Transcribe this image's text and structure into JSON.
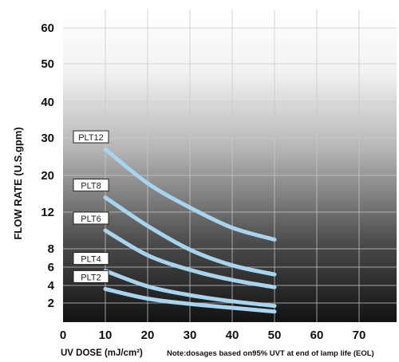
{
  "chart_data": {
    "type": "line",
    "xlabel": "UV DOSE (mJ/cm²)",
    "ylabel": "FLOW RATE (U.S.gpm)",
    "note": "Note:dosages based on95% UVT at end of lamp life (EOL)",
    "xlim": [
      0,
      80
    ],
    "x_ticks": [
      0,
      10,
      20,
      30,
      40,
      50,
      60,
      70
    ],
    "y_ticks": [
      2,
      4,
      6,
      8,
      12,
      20,
      30,
      40,
      50,
      60
    ],
    "grid": true,
    "series": [
      {
        "name": "PLT12",
        "x": [
          10,
          20,
          30,
          40,
          50
        ],
        "y": [
          27,
          18.3,
          13,
          10.3,
          9
        ]
      },
      {
        "name": "PLT8",
        "x": [
          10,
          20,
          30,
          40,
          50
        ],
        "y": [
          15.2,
          10.5,
          7.9,
          6.2,
          5.2
        ]
      },
      {
        "name": "PLT6",
        "x": [
          10,
          20,
          30,
          40,
          50
        ],
        "y": [
          10,
          7.3,
          5.7,
          4.6,
          3.8
        ]
      },
      {
        "name": "PLT4",
        "x": [
          10,
          20,
          30,
          40,
          50
        ],
        "y": [
          5.6,
          3.9,
          2.9,
          2.2,
          1.7
        ]
      },
      {
        "name": "PLT2",
        "x": [
          10,
          20,
          30,
          40,
          50
        ],
        "y": [
          3.6,
          2.5,
          1.9,
          1.5,
          1.1
        ]
      }
    ],
    "colors": {
      "line": "#a8d4ee",
      "grid": "#c8c8c8",
      "plot_top": "#ffffff",
      "plot_bottom": "#121212"
    }
  }
}
